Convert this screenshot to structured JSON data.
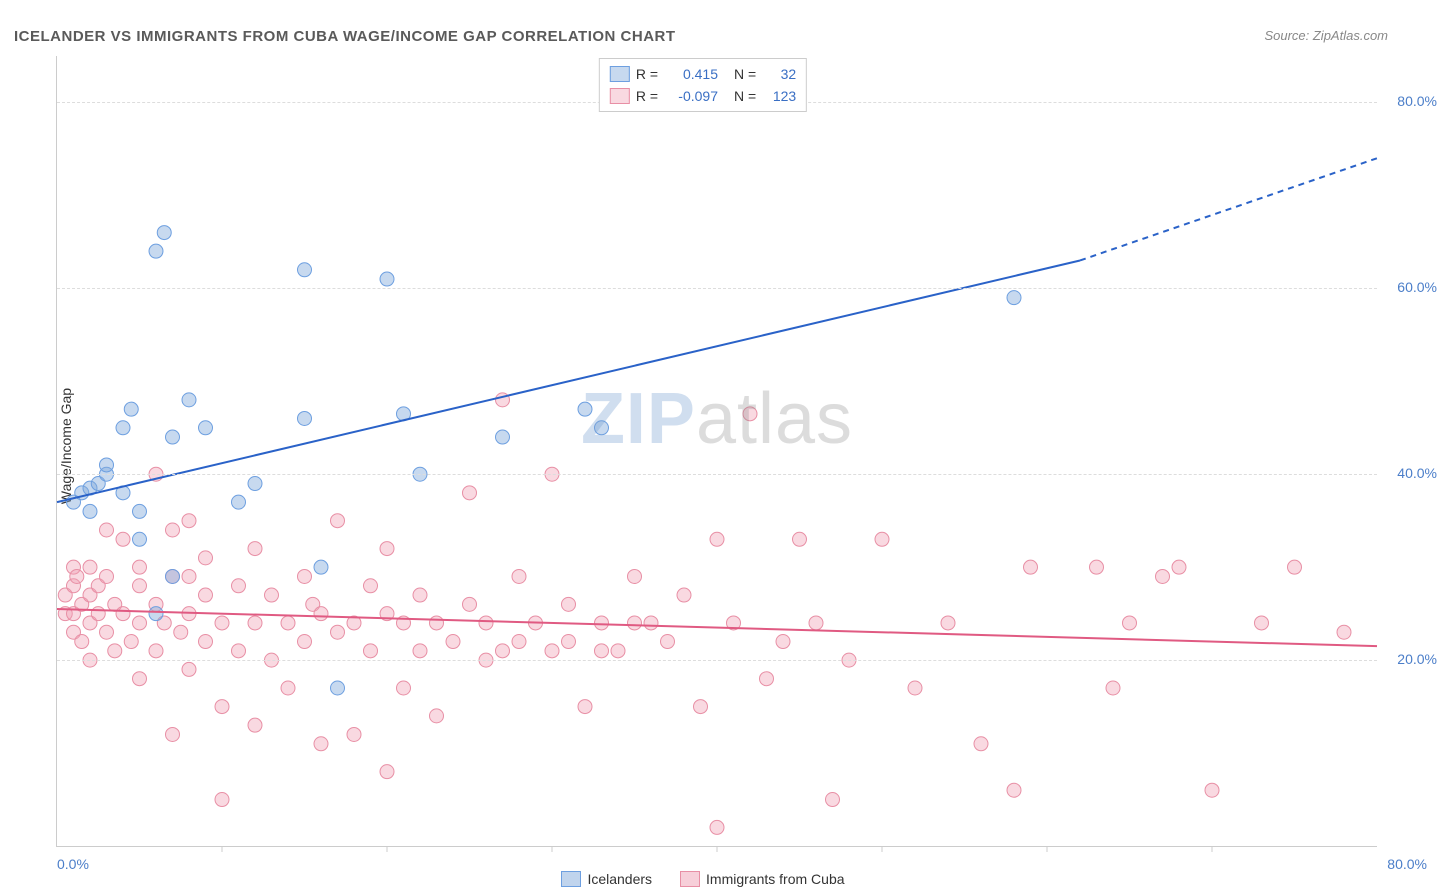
{
  "title": "ICELANDER VS IMMIGRANTS FROM CUBA WAGE/INCOME GAP CORRELATION CHART",
  "source": "Source: ZipAtlas.com",
  "ylabel": "Wage/Income Gap",
  "watermark": {
    "part1": "ZIP",
    "part2": "atlas"
  },
  "chart": {
    "type": "scatter",
    "xlim": [
      0,
      80
    ],
    "ylim": [
      0,
      85
    ],
    "x_axis_label_left": "0.0%",
    "x_axis_label_right": "80.0%",
    "y_gridlines": [
      20,
      40,
      60,
      80
    ],
    "y_tick_labels": [
      "20.0%",
      "40.0%",
      "60.0%",
      "80.0%"
    ],
    "x_ticks": [
      10,
      20,
      30,
      40,
      50,
      60,
      70
    ],
    "background_color": "#ffffff",
    "grid_color": "#dddddd",
    "axis_label_color": "#4b7ec9",
    "axis_label_fontsize": 14,
    "marker_radius": 7,
    "marker_opacity": 0.45,
    "series": [
      {
        "name": "Icelanders",
        "color": "#6d9fe0",
        "fill": "rgba(130,170,220,0.45)",
        "stroke": "#6d9fe0",
        "R": "0.415",
        "N": "32",
        "trend": {
          "x1": 0,
          "y1": 37,
          "x2": 62,
          "y2": 63,
          "x_dash_end": 80,
          "y_dash_end": 74,
          "color": "#2a62c8",
          "width": 2
        },
        "points": [
          [
            1,
            37
          ],
          [
            1.5,
            38
          ],
          [
            2,
            38.5
          ],
          [
            2,
            36
          ],
          [
            2.5,
            39
          ],
          [
            3,
            40
          ],
          [
            3,
            41
          ],
          [
            4,
            38
          ],
          [
            4,
            45
          ],
          [
            4.5,
            47
          ],
          [
            5,
            33
          ],
          [
            5,
            36
          ],
          [
            6,
            25
          ],
          [
            6,
            64
          ],
          [
            6.5,
            66
          ],
          [
            7,
            29
          ],
          [
            7,
            44
          ],
          [
            8,
            48
          ],
          [
            9,
            45
          ],
          [
            11,
            37
          ],
          [
            12,
            39
          ],
          [
            15,
            62
          ],
          [
            15,
            46
          ],
          [
            16,
            30
          ],
          [
            17,
            17
          ],
          [
            20,
            61
          ],
          [
            21,
            46.5
          ],
          [
            22,
            40
          ],
          [
            27,
            44
          ],
          [
            32,
            47
          ],
          [
            33,
            45
          ],
          [
            58,
            59
          ]
        ]
      },
      {
        "name": "Immigrants from Cuba",
        "color": "#e88fa5",
        "fill": "rgba(240,160,180,0.4)",
        "stroke": "#e88fa5",
        "R": "-0.097",
        "N": "123",
        "trend": {
          "x1": 0,
          "y1": 25.5,
          "x2": 80,
          "y2": 21.5,
          "color": "#e05a82",
          "width": 2
        },
        "points": [
          [
            0.5,
            25
          ],
          [
            0.5,
            27
          ],
          [
            1,
            28
          ],
          [
            1,
            30
          ],
          [
            1,
            25
          ],
          [
            1,
            23
          ],
          [
            1.2,
            29
          ],
          [
            1.5,
            26
          ],
          [
            1.5,
            22
          ],
          [
            2,
            24
          ],
          [
            2,
            30
          ],
          [
            2,
            27
          ],
          [
            2,
            20
          ],
          [
            2.5,
            25
          ],
          [
            2.5,
            28
          ],
          [
            3,
            34
          ],
          [
            3,
            23
          ],
          [
            3,
            29
          ],
          [
            3.5,
            21
          ],
          [
            3.5,
            26
          ],
          [
            4,
            25
          ],
          [
            4,
            33
          ],
          [
            4.5,
            22
          ],
          [
            5,
            28
          ],
          [
            5,
            24
          ],
          [
            5,
            18
          ],
          [
            5,
            30
          ],
          [
            6,
            40
          ],
          [
            6,
            26
          ],
          [
            6,
            21
          ],
          [
            6.5,
            24
          ],
          [
            7,
            12
          ],
          [
            7,
            29
          ],
          [
            7,
            34
          ],
          [
            7.5,
            23
          ],
          [
            8,
            25
          ],
          [
            8,
            19
          ],
          [
            8,
            29
          ],
          [
            8,
            35
          ],
          [
            9,
            22
          ],
          [
            9,
            27
          ],
          [
            9,
            31
          ],
          [
            10,
            5
          ],
          [
            10,
            24
          ],
          [
            10,
            15
          ],
          [
            11,
            21
          ],
          [
            11,
            28
          ],
          [
            12,
            13
          ],
          [
            12,
            24
          ],
          [
            12,
            32
          ],
          [
            13,
            20
          ],
          [
            13,
            27
          ],
          [
            14,
            24
          ],
          [
            14,
            17
          ],
          [
            15,
            22
          ],
          [
            15,
            29
          ],
          [
            15.5,
            26
          ],
          [
            16,
            25
          ],
          [
            16,
            11
          ],
          [
            17,
            23
          ],
          [
            17,
            35
          ],
          [
            18,
            12
          ],
          [
            18,
            24
          ],
          [
            19,
            21
          ],
          [
            19,
            28
          ],
          [
            20,
            25
          ],
          [
            20,
            32
          ],
          [
            20,
            8
          ],
          [
            21,
            24
          ],
          [
            21,
            17
          ],
          [
            22,
            27
          ],
          [
            22,
            21
          ],
          [
            23,
            24
          ],
          [
            23,
            14
          ],
          [
            24,
            22
          ],
          [
            25,
            26
          ],
          [
            25,
            38
          ],
          [
            26,
            20
          ],
          [
            26,
            24
          ],
          [
            27,
            48
          ],
          [
            27,
            21
          ],
          [
            28,
            22
          ],
          [
            28,
            29
          ],
          [
            29,
            24
          ],
          [
            30,
            40
          ],
          [
            30,
            21
          ],
          [
            31,
            22
          ],
          [
            31,
            26
          ],
          [
            32,
            15
          ],
          [
            33,
            24
          ],
          [
            33,
            21
          ],
          [
            34,
            21
          ],
          [
            35,
            24
          ],
          [
            35,
            29
          ],
          [
            36,
            24
          ],
          [
            37,
            22
          ],
          [
            38,
            27
          ],
          [
            39,
            15
          ],
          [
            40,
            2
          ],
          [
            40,
            33
          ],
          [
            41,
            24
          ],
          [
            42,
            46.5
          ],
          [
            43,
            18
          ],
          [
            44,
            22
          ],
          [
            45,
            33
          ],
          [
            46,
            24
          ],
          [
            47,
            5
          ],
          [
            48,
            20
          ],
          [
            50,
            33
          ],
          [
            52,
            17
          ],
          [
            54,
            24
          ],
          [
            56,
            11
          ],
          [
            58,
            6
          ],
          [
            59,
            30
          ],
          [
            63,
            30
          ],
          [
            64,
            17
          ],
          [
            65,
            24
          ],
          [
            67,
            29
          ],
          [
            68,
            30
          ],
          [
            70,
            6
          ],
          [
            73,
            24
          ],
          [
            75,
            30
          ],
          [
            78,
            23
          ]
        ]
      }
    ]
  },
  "legend_top": {
    "r_label": "R =",
    "n_label": "N ="
  },
  "legend_bottom": [
    {
      "label": "Icelanders",
      "fill": "rgba(130,170,220,0.5)",
      "stroke": "#6d9fe0"
    },
    {
      "label": "Immigrants from Cuba",
      "fill": "rgba(240,160,180,0.5)",
      "stroke": "#e88fa5"
    }
  ]
}
